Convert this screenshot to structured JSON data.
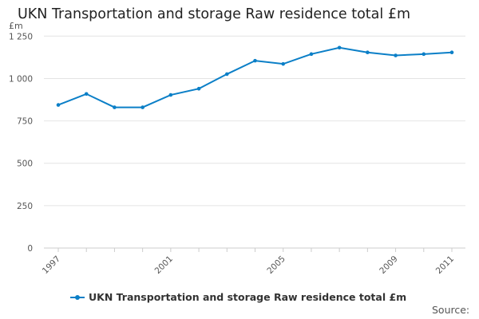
{
  "chart_data": {
    "type": "line",
    "title": "UKN Transportation and storage Raw residence total £m",
    "ylabel": "£m",
    "xlabel": "",
    "x": [
      1997,
      1998,
      1999,
      2000,
      2001,
      2002,
      2003,
      2004,
      2005,
      2006,
      2007,
      2008,
      2009,
      2010,
      2011
    ],
    "x_tick_labels": [
      "1997",
      "2001",
      "2005",
      "2009",
      "2011"
    ],
    "y_tick_labels": [
      "0",
      "250",
      "500",
      "750",
      "1 000",
      "1 250"
    ],
    "y_ticks": [
      0,
      250,
      500,
      750,
      1000,
      1250
    ],
    "ylim": [
      0,
      1250
    ],
    "grid": true,
    "legend_position": "bottom",
    "series": [
      {
        "name": "UKN Transportation and storage Raw residence total £m",
        "color": "#0b7fc7",
        "values": [
          844,
          909,
          830,
          830,
          903,
          940,
          1026,
          1105,
          1086,
          1144,
          1182,
          1154,
          1136,
          1144,
          1154
        ]
      }
    ]
  },
  "source_label": "Source:"
}
